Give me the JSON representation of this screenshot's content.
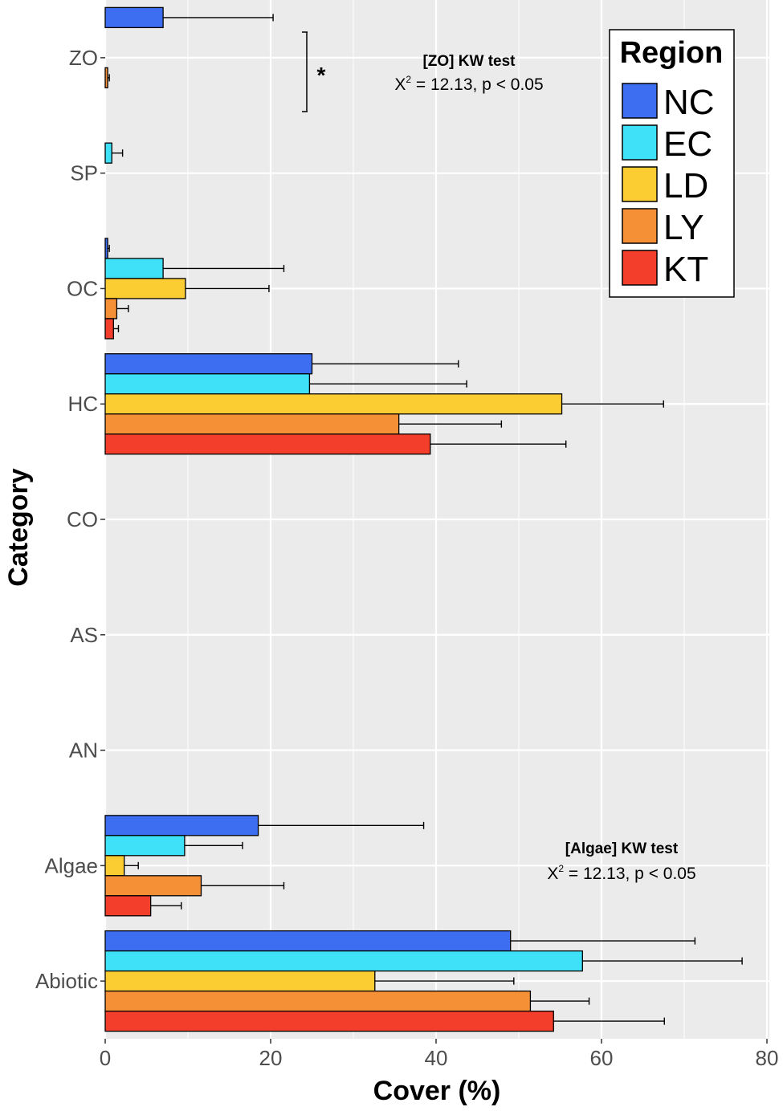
{
  "chart_data": {
    "type": "bar",
    "orientation": "horizontal",
    "title": "",
    "xlabel": "Cover (%)",
    "ylabel": "Category",
    "xlim": [
      0,
      80
    ],
    "xticks": [
      0,
      20,
      40,
      60,
      80
    ],
    "grid": true,
    "categories": [
      "ZO",
      "SP",
      "OC",
      "HC",
      "CO",
      "AS",
      "AN",
      "Algae",
      "Abiotic"
    ],
    "legend": {
      "title": "Region",
      "position": "top-right"
    },
    "series": [
      {
        "name": "NC",
        "color": "#3d6ef2",
        "values": [
          7.0,
          0,
          0.3,
          25.0,
          0,
          0,
          0,
          18.5,
          49.0
        ],
        "errors": [
          13.3,
          0,
          0.2,
          17.7,
          0,
          0,
          0,
          20.0,
          22.3
        ]
      },
      {
        "name": "EC",
        "color": "#3ee1f7",
        "values": [
          0,
          0.8,
          7.0,
          24.7,
          0,
          0,
          0,
          9.6,
          57.7
        ],
        "errors": [
          0,
          1.3,
          14.6,
          19.0,
          0,
          0,
          0,
          7.0,
          19.3
        ]
      },
      {
        "name": "LD",
        "color": "#fccd33",
        "values": [
          0,
          0,
          9.7,
          55.2,
          0,
          0,
          0,
          2.3,
          32.6
        ],
        "errors": [
          0,
          0,
          10.1,
          12.3,
          0,
          0,
          0,
          1.7,
          16.8
        ]
      },
      {
        "name": "LY",
        "color": "#f69036",
        "values": [
          0.3,
          0,
          1.4,
          35.5,
          0,
          0,
          0,
          11.6,
          51.4
        ],
        "errors": [
          0.2,
          0,
          1.4,
          12.4,
          0,
          0,
          0,
          10.0,
          7.1
        ]
      },
      {
        "name": "KT",
        "color": "#f43e2c",
        "values": [
          0,
          0,
          1.0,
          39.3,
          0,
          0,
          0,
          5.5,
          54.2
        ],
        "errors": [
          0,
          0,
          0.6,
          16.4,
          0,
          0,
          0,
          3.7,
          13.4
        ]
      }
    ],
    "annotations": [
      {
        "anchor_category": "ZO",
        "title": "[ZO] KW test",
        "stat_prefix": "X",
        "stat_sup": "2",
        "stat_rest": " = 12.13, p < 0.05",
        "significance": "*"
      },
      {
        "anchor_category": "Algae",
        "title": "[Algae] KW test",
        "stat_prefix": "X",
        "stat_sup": "2",
        "stat_rest": " = 12.13, p < 0.05"
      }
    ]
  }
}
